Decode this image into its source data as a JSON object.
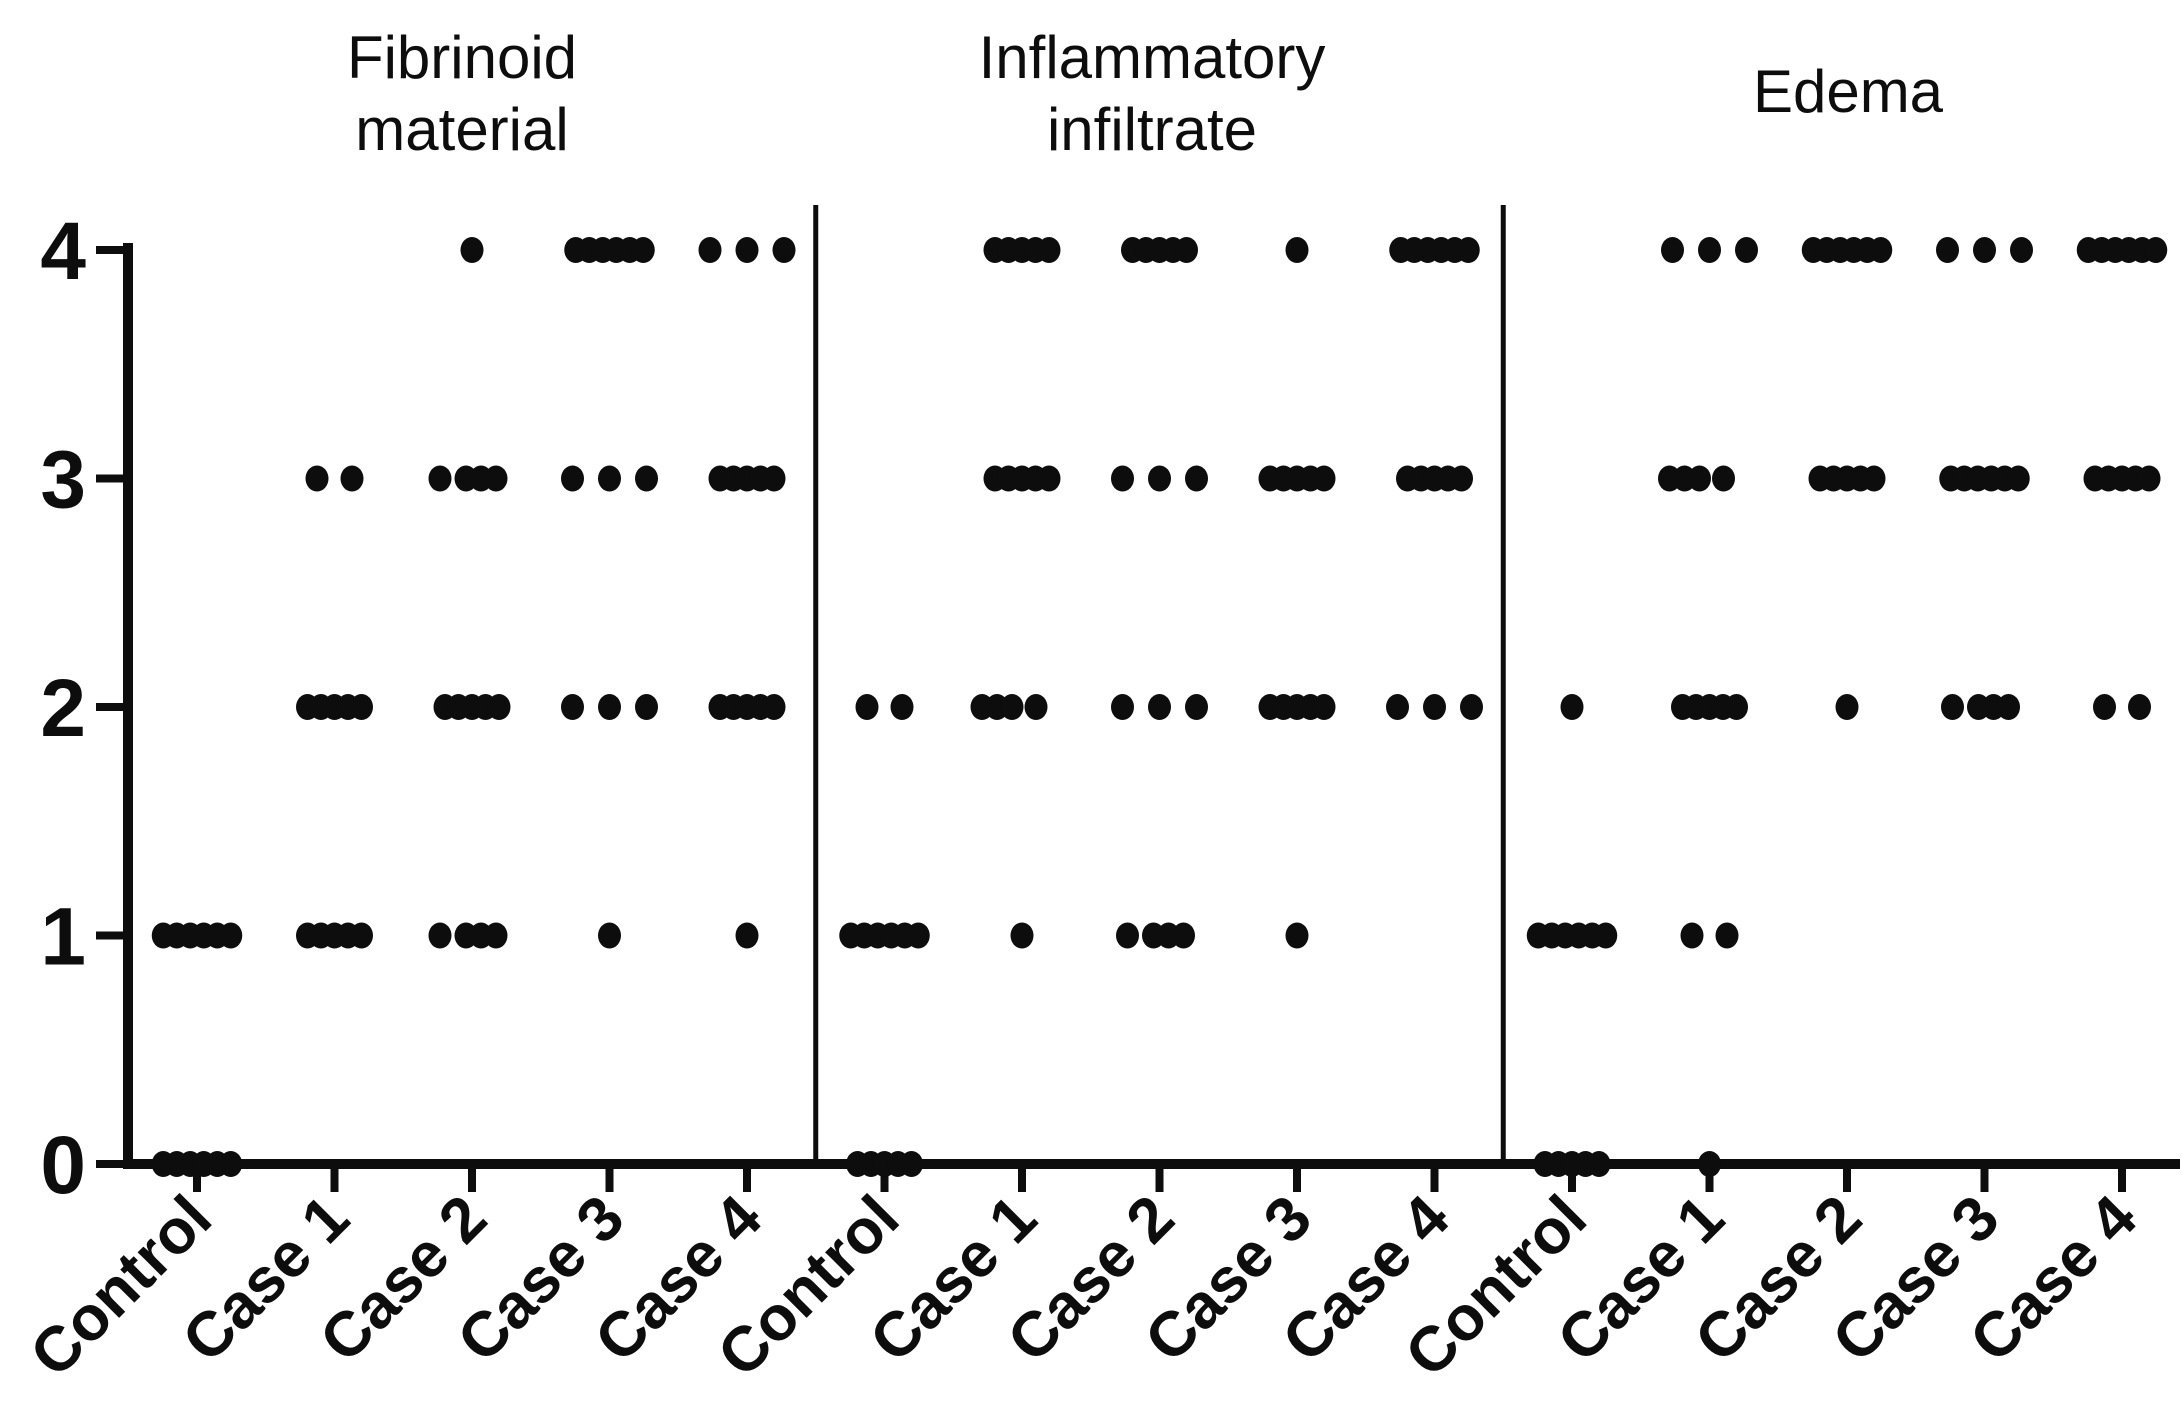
{
  "chart_data": {
    "type": "scatter",
    "description": "Dot plot of semi-quantitative histologic scores (0-4) per vessel section, three panels sharing one y-axis",
    "ylabel": "",
    "xlabel": "",
    "ylim": [
      0,
      4
    ],
    "yticks": [
      "0",
      "1",
      "2",
      "3",
      "4"
    ],
    "dot_color": "#0d0d0d",
    "categories": [
      "Control",
      "Case 1",
      "Case 2",
      "Case 3",
      "Case 4"
    ],
    "panels": [
      {
        "title_lines": [
          "Fibrinoid",
          "material"
        ],
        "groups": [
          {
            "label": "Control",
            "cells": [
              {
                "score": 0,
                "count": 6
              },
              {
                "score": 1,
                "count": 6
              }
            ]
          },
          {
            "label": "Case 1",
            "cells": [
              {
                "score": 1,
                "count": 5
              },
              {
                "score": 2,
                "count": 5
              },
              {
                "score": 3,
                "count": 2
              }
            ]
          },
          {
            "label": "Case 2",
            "cells": [
              {
                "score": 1,
                "count": 4,
                "pattern": "1+3"
              },
              {
                "score": 2,
                "count": 5
              },
              {
                "score": 3,
                "count": 4,
                "pattern": "1+3"
              },
              {
                "score": 4,
                "count": 1
              }
            ]
          },
          {
            "label": "Case 3",
            "cells": [
              {
                "score": 1,
                "count": 1
              },
              {
                "score": 2,
                "count": 3,
                "pattern": "spread"
              },
              {
                "score": 3,
                "count": 3,
                "pattern": "spread"
              },
              {
                "score": 4,
                "count": 6
              }
            ]
          },
          {
            "label": "Case 4",
            "cells": [
              {
                "score": 1,
                "count": 1
              },
              {
                "score": 2,
                "count": 5
              },
              {
                "score": 3,
                "count": 5
              },
              {
                "score": 4,
                "count": 3,
                "pattern": "spread"
              }
            ]
          }
        ]
      },
      {
        "title_lines": [
          "Inflammatory",
          "infiltrate"
        ],
        "groups": [
          {
            "label": "Control",
            "cells": [
              {
                "score": 0,
                "count": 5
              },
              {
                "score": 1,
                "count": 6
              },
              {
                "score": 2,
                "count": 2
              }
            ]
          },
          {
            "label": "Case 1",
            "cells": [
              {
                "score": 1,
                "count": 1
              },
              {
                "score": 2,
                "count": 4,
                "pattern": "3+1"
              },
              {
                "score": 3,
                "count": 5
              },
              {
                "score": 4,
                "count": 5
              }
            ]
          },
          {
            "label": "Case 2",
            "cells": [
              {
                "score": 1,
                "count": 4,
                "pattern": "1+3"
              },
              {
                "score": 2,
                "count": 3,
                "pattern": "spread"
              },
              {
                "score": 3,
                "count": 3,
                "pattern": "spread"
              },
              {
                "score": 4,
                "count": 5
              }
            ]
          },
          {
            "label": "Case 3",
            "cells": [
              {
                "score": 1,
                "count": 1
              },
              {
                "score": 2,
                "count": 5
              },
              {
                "score": 3,
                "count": 5
              },
              {
                "score": 4,
                "count": 1
              }
            ]
          },
          {
            "label": "Case 4",
            "cells": [
              {
                "score": 2,
                "count": 3,
                "pattern": "spread"
              },
              {
                "score": 3,
                "count": 5
              },
              {
                "score": 4,
                "count": 6
              }
            ]
          }
        ]
      },
      {
        "title_lines": [
          "Edema"
        ],
        "groups": [
          {
            "label": "Control",
            "cells": [
              {
                "score": 0,
                "count": 5
              },
              {
                "score": 1,
                "count": 6
              },
              {
                "score": 2,
                "count": 1
              }
            ]
          },
          {
            "label": "Case 1",
            "cells": [
              {
                "score": 0,
                "count": 1
              },
              {
                "score": 1,
                "count": 2
              },
              {
                "score": 2,
                "count": 5
              },
              {
                "score": 3,
                "count": 4,
                "pattern": "3+1"
              },
              {
                "score": 4,
                "count": 3,
                "pattern": "spread"
              }
            ]
          },
          {
            "label": "Case 2",
            "cells": [
              {
                "score": 2,
                "count": 1
              },
              {
                "score": 3,
                "count": 5
              },
              {
                "score": 4,
                "count": 6
              }
            ]
          },
          {
            "label": "Case 3",
            "cells": [
              {
                "score": 2,
                "count": 4,
                "pattern": "1+3"
              },
              {
                "score": 3,
                "count": 6
              },
              {
                "score": 4,
                "count": 3,
                "pattern": "spread"
              }
            ]
          },
          {
            "label": "Case 4",
            "cells": [
              {
                "score": 2,
                "count": 2
              },
              {
                "score": 3,
                "count": 5
              },
              {
                "score": 4,
                "count": 6
              }
            ]
          }
        ]
      }
    ]
  }
}
